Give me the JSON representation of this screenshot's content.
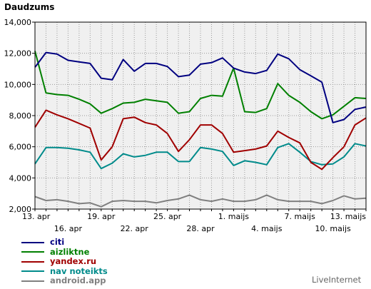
{
  "chart_data": {
    "type": "line",
    "title": "",
    "ylabel": "Daudzums",
    "xlabel": "",
    "ylim": [
      2000,
      14000
    ],
    "yticks": [
      2000,
      4000,
      6000,
      8000,
      10000,
      12000,
      14000
    ],
    "ytick_labels": [
      "2,000",
      "4,000",
      "6,000",
      "8,000",
      "10,000",
      "12,000",
      "14,000"
    ],
    "grid": true,
    "legend_position": "bottom-left",
    "x_labels": [
      {
        "label": "13. apr",
        "index": 0,
        "row": 0
      },
      {
        "label": "16. apr",
        "index": 3,
        "row": 1
      },
      {
        "label": "19. apr",
        "index": 6,
        "row": 0
      },
      {
        "label": "22. apr",
        "index": 9,
        "row": 1
      },
      {
        "label": "25. apr",
        "index": 12,
        "row": 0
      },
      {
        "label": "28. apr",
        "index": 15,
        "row": 1
      },
      {
        "label": "1. maijs",
        "index": 18,
        "row": 0
      },
      {
        "label": "4. maijs",
        "index": 21,
        "row": 1
      },
      {
        "label": "7. maijs",
        "index": 24,
        "row": 0
      },
      {
        "label": "10. maijs",
        "index": 27,
        "row": 1
      },
      {
        "label": "13. maijs",
        "index": 30,
        "row": 0
      }
    ],
    "series": [
      {
        "name": "citi",
        "color": "#000080",
        "values": [
          11100,
          12050,
          11950,
          11550,
          11450,
          11350,
          10400,
          10300,
          11600,
          10850,
          11350,
          11350,
          11150,
          10500,
          10600,
          11300,
          11400,
          11700,
          11050,
          10800,
          10700,
          10900,
          11950,
          11650,
          10950,
          10550,
          10150,
          7550,
          7750,
          8400,
          8550
        ]
      },
      {
        "name": "aizliktne",
        "color": "#008000",
        "values": [
          12150,
          9450,
          9350,
          9300,
          9050,
          8750,
          8150,
          8450,
          8800,
          8850,
          9050,
          8950,
          8850,
          8150,
          8250,
          9100,
          9300,
          9250,
          11050,
          8250,
          8200,
          8450,
          10050,
          9300,
          8850,
          8250,
          7800,
          8050,
          8600,
          9150,
          9100
        ]
      },
      {
        "name": "yandex.ru",
        "color": "#a00000",
        "values": [
          7250,
          8350,
          8050,
          7800,
          7500,
          7200,
          5150,
          6000,
          7800,
          7900,
          7550,
          7400,
          6850,
          5700,
          6450,
          7400,
          7400,
          6850,
          5650,
          5750,
          5850,
          6050,
          7000,
          6600,
          6250,
          5000,
          4550,
          5300,
          6000,
          7400,
          7850
        ]
      },
      {
        "name": "nav noteikts",
        "color": "#008b8b",
        "values": [
          4900,
          5950,
          5950,
          5900,
          5800,
          5650,
          4600,
          4950,
          5550,
          5350,
          5450,
          5650,
          5650,
          5050,
          5050,
          5950,
          5850,
          5700,
          4800,
          5100,
          5000,
          4850,
          5950,
          6200,
          5650,
          5050,
          4850,
          4900,
          5350,
          6200,
          6050
        ]
      },
      {
        "name": "android.app",
        "color": "#808080",
        "values": [
          2800,
          2550,
          2600,
          2500,
          2350,
          2400,
          2150,
          2500,
          2550,
          2500,
          2500,
          2400,
          2550,
          2650,
          2900,
          2600,
          2500,
          2650,
          2500,
          2500,
          2600,
          2900,
          2600,
          2500,
          2500,
          2500,
          2350,
          2550,
          2850,
          2650,
          2700
        ]
      }
    ]
  },
  "brand": "LiveInternet"
}
